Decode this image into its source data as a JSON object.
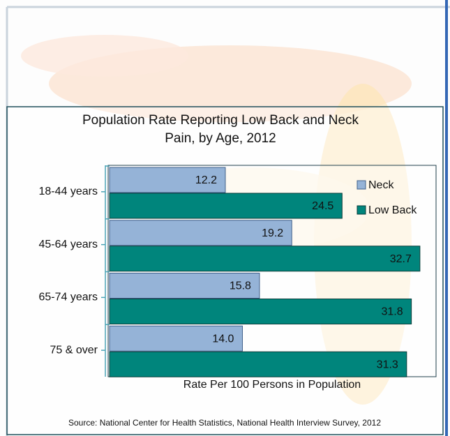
{
  "chart_data": {
    "type": "bar",
    "orientation": "horizontal",
    "title": "Population Rate Reporting Low Back and Neck Pain, by Age, 2012",
    "xlabel": "Rate Per 100 Persons in Population",
    "source": "Source: National Center for Health Statistics, National Health Interview Survey, 2012",
    "categories": [
      "18-44 years",
      "45-64 years",
      "65-74 years",
      "75 & over"
    ],
    "series": [
      {
        "name": "Neck",
        "color": "#95b3d7",
        "values": [
          12.2,
          19.2,
          15.8,
          14
        ],
        "value_labels": [
          "12.2",
          "19.2",
          "15.8",
          "14.0"
        ]
      },
      {
        "name": "Low Back",
        "color": "#00857c",
        "values": [
          24.5,
          32.7,
          31.8,
          31.3
        ]
      }
    ],
    "xlim": [
      0,
      34.4
    ],
    "legend": "upper right"
  }
}
